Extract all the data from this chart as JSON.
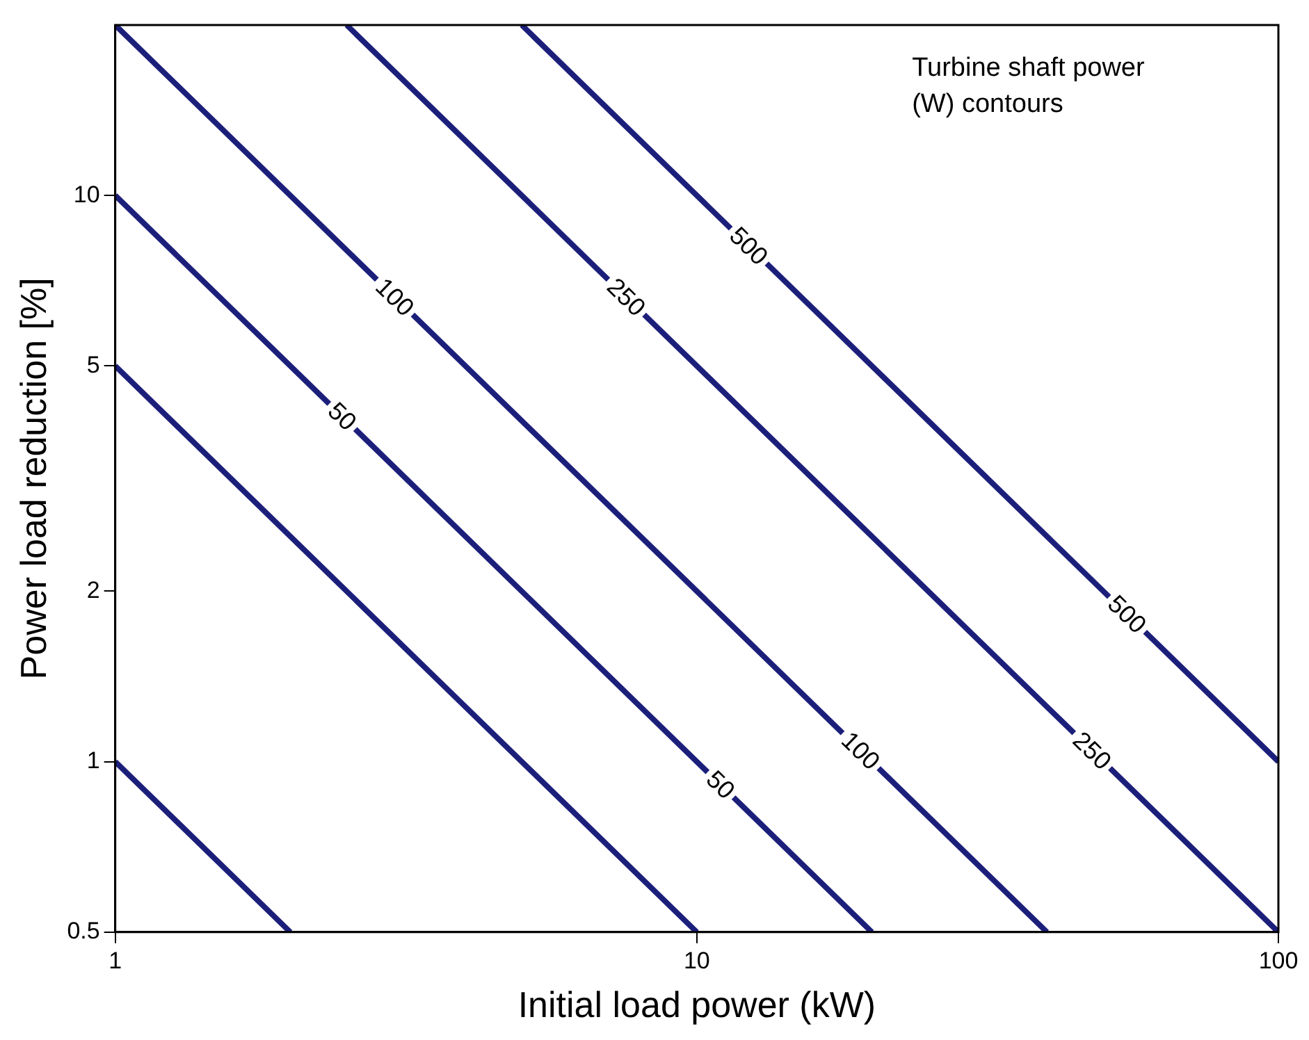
{
  "chart_data": {
    "type": "line",
    "xlabel": "Initial load power (kW)",
    "ylabel": "Power load reduction [%]",
    "log": "xy",
    "grid": false,
    "legend": false,
    "marker": "none",
    "line_style": "solid",
    "xlim": [
      1,
      100
    ],
    "ylim": [
      0.5,
      20
    ],
    "xticks": [
      1,
      10,
      100
    ],
    "yticks": [
      0.5,
      1,
      2,
      5,
      10
    ],
    "annotations": [
      "Turbine shaft power (W) contours"
    ],
    "series": [
      {
        "color": "#1c1f7a",
        "x": [
          1,
          2
        ],
        "values": [
          1,
          0.5
        ]
      },
      {
        "color": "#1c1f7a",
        "x": [
          1,
          10
        ],
        "values": [
          5,
          0.5
        ]
      },
      {
        "name": "50",
        "color": "#1c1f7a",
        "x": [
          1,
          20
        ],
        "values": [
          10,
          0.5
        ]
      },
      {
        "name": "100",
        "color": "#1c1f7a",
        "x": [
          1,
          40
        ],
        "values": [
          20,
          0.5
        ]
      },
      {
        "name": "250",
        "color": "#1c1f7a",
        "x": [
          2.5,
          100
        ],
        "values": [
          20,
          0.5
        ]
      },
      {
        "name": "500",
        "color": "#1c1f7a",
        "x": [
          5,
          100
        ],
        "values": [
          20,
          1
        ]
      }
    ]
  }
}
